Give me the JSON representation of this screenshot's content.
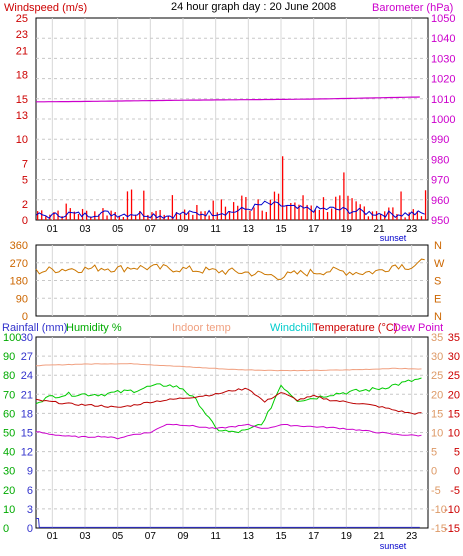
{
  "title": "24 hour graph day : 20 June 2008",
  "hour_labels": [
    "01",
    "03",
    "05",
    "07",
    "09",
    "11",
    "13",
    "15",
    "17",
    "19",
    "21",
    "23"
  ],
  "sunset_label": "sunset",
  "chart_data": [
    {
      "type": "line",
      "panel": "wind-barometer",
      "left_axis": {
        "label": "Windspeed (m/s)",
        "ticks": [
          0,
          2,
          5,
          7,
          10,
          13,
          15,
          18,
          21,
          23,
          25
        ],
        "range": [
          0,
          25
        ],
        "color": "#cc0000"
      },
      "right_axis": {
        "label": "Barometer (hPa)",
        "ticks": [
          950,
          960,
          970,
          980,
          990,
          1000,
          1010,
          1020,
          1030,
          1040,
          1050
        ],
        "range": [
          950,
          1050
        ],
        "color": "#cc00cc"
      },
      "grid": true,
      "series": [
        {
          "name": "Windspeed (m/s)",
          "axis": "left",
          "color": "#ff0000",
          "style": "bars",
          "x": [
            0,
            1,
            2,
            3,
            4,
            5,
            6,
            7,
            8,
            9,
            10,
            11,
            12,
            13,
            14,
            15,
            16,
            17,
            18,
            19,
            20,
            21,
            22,
            23
          ],
          "values": [
            1.5,
            1.4,
            1.8,
            1.2,
            1.6,
            1.3,
            1.7,
            1.5,
            1.2,
            1.6,
            1.8,
            2.0,
            2.5,
            3.2,
            4.0,
            3.5,
            2.8,
            2.6,
            2.9,
            2.5,
            2.1,
            1.8,
            1.5,
            1.6
          ]
        },
        {
          "name": "Windspeed average",
          "axis": "left",
          "color": "#0000cc",
          "x": [
            0,
            1,
            2,
            3,
            4,
            5,
            6,
            7,
            8,
            9,
            10,
            11,
            12,
            13,
            14,
            15,
            16,
            17,
            18,
            19,
            20,
            21,
            22,
            23
          ],
          "values": [
            0.6,
            0.5,
            0.8,
            0.6,
            0.9,
            0.7,
            0.8,
            0.7,
            0.5,
            0.8,
            0.8,
            0.9,
            1.0,
            1.4,
            2.0,
            1.8,
            1.4,
            1.3,
            1.4,
            1.2,
            1.0,
            0.8,
            0.7,
            0.8
          ]
        },
        {
          "name": "Barometer (hPa)",
          "axis": "right",
          "color": "#cc00cc",
          "x": [
            0,
            3,
            6,
            9,
            12,
            15,
            18,
            21,
            23.5
          ],
          "values": [
            1008.5,
            1008.7,
            1009.0,
            1009.3,
            1009.5,
            1009.7,
            1010.0,
            1010.5,
            1010.9
          ]
        }
      ]
    },
    {
      "type": "line",
      "panel": "wind-direction",
      "left_axis": {
        "label": "",
        "ticks": [
          360,
          270,
          180,
          90,
          0
        ],
        "range": [
          0,
          360
        ],
        "color": "#cc6600"
      },
      "right_axis": {
        "label": "",
        "ticks": [
          "N",
          "W",
          "S",
          "E",
          "N"
        ],
        "color": "#cc6600"
      },
      "grid": true,
      "series": [
        {
          "name": "Wind direction",
          "axis": "left",
          "color": "#cc7700",
          "x": [
            0,
            1,
            2,
            3,
            4,
            5,
            6,
            7,
            8,
            9,
            10,
            11,
            12,
            13,
            14,
            15,
            16,
            17,
            18,
            19,
            20,
            21,
            22,
            23,
            23.5
          ],
          "values": [
            225,
            235,
            240,
            238,
            245,
            240,
            248,
            245,
            242,
            238,
            232,
            228,
            225,
            220,
            210,
            200,
            215,
            222,
            230,
            225,
            220,
            228,
            260,
            250,
            270
          ]
        }
      ]
    },
    {
      "type": "line",
      "panel": "temp-humidity",
      "legend": [
        "Rainfall (mm)",
        "Humidity %",
        "Indoor temp",
        "Windchill",
        "Temperature (°C)",
        "Dew Point"
      ],
      "left_axes": [
        {
          "label": "Rainfall (mm)",
          "ticks": [
            0,
            3,
            6,
            9,
            12,
            15,
            18,
            21,
            24,
            27,
            30
          ],
          "range": [
            0,
            30
          ],
          "color": "#3333cc"
        },
        {
          "label": "Humidity %",
          "ticks": [
            0,
            10,
            20,
            30,
            40,
            50,
            60,
            70,
            80,
            90,
            100
          ],
          "range": [
            0,
            100
          ],
          "color": "#00aa00"
        }
      ],
      "right_axes": [
        {
          "label": "Temperature (°C)",
          "ticks": [
            -15,
            -10,
            -5,
            0,
            5,
            10,
            15,
            20,
            25,
            30,
            35
          ],
          "range": [
            -15,
            35
          ],
          "color": "#cc0000"
        },
        {
          "label": "",
          "ticks": [
            -15,
            -10,
            -5,
            0,
            5,
            10,
            15,
            20,
            25,
            30,
            35
          ],
          "range": [
            -15,
            35
          ],
          "color": "#dd9966"
        }
      ],
      "grid": true,
      "series": [
        {
          "name": "Indoor temp",
          "axis": "temp",
          "color": "#f0a080",
          "x": [
            0,
            2,
            4,
            6,
            8,
            10,
            12,
            14,
            16,
            18,
            20,
            22,
            23.5
          ],
          "values": [
            27.5,
            27.8,
            28.0,
            28.0,
            27.5,
            27.0,
            26.5,
            26.3,
            26.2,
            26.3,
            26.5,
            26.8,
            26.6
          ]
        },
        {
          "name": "Humidity %",
          "axis": "humidity",
          "color": "#00cc00",
          "x": [
            0,
            1,
            2,
            3,
            4,
            5,
            6,
            7,
            8,
            9,
            10,
            11,
            12,
            13,
            14,
            15,
            16,
            17,
            18,
            19,
            20,
            21,
            22,
            23,
            23.5
          ],
          "values": [
            66,
            69,
            70,
            70,
            70,
            71,
            72,
            74,
            75,
            73,
            65,
            52,
            50,
            51,
            56,
            75,
            67,
            68,
            70,
            71,
            72,
            73,
            75,
            77,
            78
          ]
        },
        {
          "name": "Temperature (°C)",
          "axis": "temp",
          "color": "#bb0000",
          "x": [
            0,
            1,
            2,
            3,
            4,
            5,
            6,
            7,
            8,
            9,
            10,
            11,
            12,
            13,
            14,
            15,
            16,
            17,
            18,
            19,
            20,
            21,
            22,
            23,
            23.5
          ],
          "values": [
            18.5,
            18.0,
            17.5,
            17.2,
            17.0,
            16.5,
            17.2,
            18.0,
            18.5,
            19.0,
            19.5,
            20.0,
            21.0,
            21.5,
            18.0,
            20.5,
            18.5,
            19.5,
            18.5,
            18.0,
            17.5,
            16.8,
            15.8,
            15.0,
            15.0
          ]
        },
        {
          "name": "Dew Point",
          "axis": "temp",
          "color": "#cc00cc",
          "x": [
            0,
            1,
            2,
            3,
            4,
            5,
            6,
            7,
            8,
            9,
            10,
            11,
            12,
            13,
            14,
            15,
            16,
            17,
            18,
            19,
            20,
            21,
            22,
            23,
            23.5
          ],
          "values": [
            10.2,
            9.5,
            9.0,
            8.8,
            9.0,
            8.5,
            9.5,
            10.0,
            12.2,
            12.0,
            11.5,
            11.0,
            11.5,
            12.0,
            11.0,
            12.0,
            11.8,
            11.5,
            11.3,
            11.0,
            10.5,
            10.0,
            9.5,
            9.3,
            9.2
          ]
        },
        {
          "name": "Rainfall (mm)",
          "axis": "rain",
          "color": "#3333cc",
          "x": [
            0,
            0.15,
            0.2,
            23.5
          ],
          "values": [
            1.5,
            1.5,
            0.1,
            0.1
          ]
        }
      ]
    }
  ]
}
